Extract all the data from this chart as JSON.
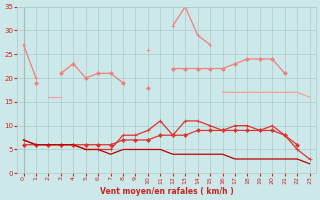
{
  "x": [
    0,
    1,
    2,
    3,
    4,
    5,
    6,
    7,
    8,
    9,
    10,
    11,
    12,
    13,
    14,
    15,
    16,
    17,
    18,
    19,
    20,
    21,
    22,
    23
  ],
  "lines": [
    {
      "color": "#f08080",
      "linewidth": 0.9,
      "marker": "+",
      "markersize": 3,
      "y": [
        27,
        20,
        null,
        null,
        null,
        null,
        null,
        null,
        null,
        null,
        26,
        null,
        31,
        35,
        29,
        27,
        null,
        null,
        null,
        null,
        null,
        21,
        null,
        null
      ]
    },
    {
      "color": "#f08080",
      "linewidth": 0.9,
      "marker": "D",
      "markersize": 2,
      "y": [
        null,
        19,
        null,
        21,
        23,
        20,
        21,
        21,
        19,
        null,
        18,
        null,
        22,
        22,
        22,
        22,
        22,
        23,
        24,
        24,
        24,
        21,
        null,
        null
      ]
    },
    {
      "color": "#f4a0a0",
      "linewidth": 0.9,
      "marker": null,
      "markersize": 0,
      "y": [
        null,
        null,
        16,
        16,
        null,
        null,
        null,
        null,
        null,
        null,
        null,
        null,
        null,
        null,
        null,
        null,
        17,
        17,
        17,
        17,
        17,
        17,
        17,
        16
      ]
    },
    {
      "color": "#dd3333",
      "linewidth": 0.9,
      "marker": "+",
      "markersize": 3,
      "y": [
        7,
        6,
        6,
        6,
        6,
        5,
        5,
        5,
        8,
        8,
        9,
        11,
        8,
        11,
        11,
        10,
        9,
        10,
        10,
        9,
        10,
        8,
        5,
        3
      ]
    },
    {
      "color": "#dd3333",
      "linewidth": 0.9,
      "marker": "D",
      "markersize": 2,
      "y": [
        6,
        6,
        6,
        6,
        6,
        6,
        6,
        6,
        7,
        7,
        7,
        8,
        8,
        8,
        9,
        9,
        9,
        9,
        9,
        9,
        9,
        8,
        6,
        null
      ]
    },
    {
      "color": "#bb0000",
      "linewidth": 0.9,
      "marker": null,
      "markersize": 0,
      "y": [
        7,
        6,
        6,
        6,
        6,
        5,
        5,
        4,
        5,
        5,
        5,
        5,
        4,
        4,
        4,
        4,
        4,
        3,
        3,
        3,
        3,
        3,
        3,
        2
      ]
    }
  ],
  "xlabel": "Vent moyen/en rafales ( km/h )",
  "ylim": [
    0,
    35
  ],
  "yticks": [
    0,
    5,
    10,
    15,
    20,
    25,
    30,
    35
  ],
  "xlim": [
    -0.5,
    23.5
  ],
  "xticks": [
    0,
    1,
    2,
    3,
    4,
    5,
    6,
    7,
    8,
    9,
    10,
    11,
    12,
    13,
    14,
    15,
    16,
    17,
    18,
    19,
    20,
    21,
    22,
    23
  ],
  "bg_color": "#cce8e8",
  "grid_color": "#aacccc",
  "tick_color": "#cc2222",
  "label_color": "#cc2222"
}
